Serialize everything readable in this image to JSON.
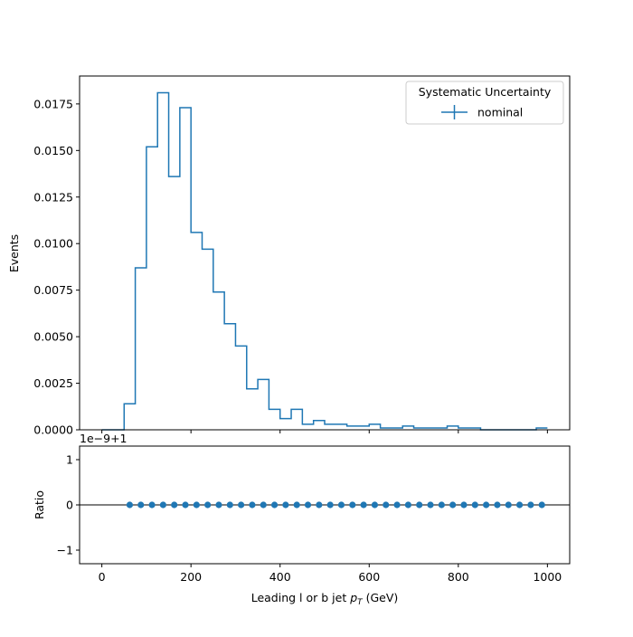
{
  "chart_data": [
    {
      "type": "line",
      "subtype": "step-histogram",
      "title": "",
      "xlabel": "",
      "ylabel": "Events",
      "xlim": [
        -50,
        1050
      ],
      "ylim": [
        0,
        0.019
      ],
      "x_ticks": [
        0,
        200,
        400,
        600,
        800,
        1000
      ],
      "y_ticks": [
        0.0,
        0.0025,
        0.005,
        0.0075,
        0.01,
        0.0125,
        0.015,
        0.0175
      ],
      "y_tick_labels": [
        "0.0000",
        "0.0025",
        "0.0050",
        "0.0075",
        "0.0100",
        "0.0125",
        "0.0150",
        "0.0175"
      ],
      "grid": false,
      "legend": {
        "title": "Systematic Uncertainty",
        "entries": [
          "nominal"
        ],
        "placement": "top-right"
      },
      "series": [
        {
          "name": "nominal",
          "color": "#1f77b4",
          "bin_edges": [
            0,
            25,
            50,
            75,
            100,
            125,
            150,
            175,
            200,
            225,
            250,
            275,
            300,
            325,
            350,
            375,
            400,
            425,
            450,
            475,
            500,
            525,
            550,
            575,
            600,
            625,
            650,
            675,
            700,
            725,
            750,
            775,
            800,
            825,
            850,
            875,
            900,
            925,
            950,
            975,
            1000
          ],
          "values": [
            0.0,
            0.0,
            0.0014,
            0.0087,
            0.0152,
            0.0181,
            0.0136,
            0.0173,
            0.0106,
            0.0097,
            0.0074,
            0.0057,
            0.0045,
            0.0022,
            0.0027,
            0.0011,
            0.0006,
            0.0011,
            0.0003,
            0.0005,
            0.0003,
            0.0003,
            0.0002,
            0.0002,
            0.0003,
            0.0001,
            0.0001,
            0.0002,
            0.0001,
            0.0001,
            0.0001,
            0.0002,
            0.0001,
            0.0001,
            0.0,
            0.0,
            0.0,
            0.0,
            0.0,
            0.0001
          ]
        }
      ]
    },
    {
      "type": "scatter",
      "title": "",
      "xlabel": "Leading l or b jet $p_T$ (GeV)",
      "ylabel": "Ratio",
      "offset_text": "1e−9+1",
      "xlim": [
        -50,
        1050
      ],
      "ylim": [
        -1.3,
        1.3
      ],
      "x_ticks": [
        0,
        200,
        400,
        600,
        800,
        1000
      ],
      "y_ticks": [
        -1,
        0,
        1
      ],
      "y_tick_labels": [
        "−1",
        "0",
        "1"
      ],
      "grid": false,
      "reference_line": 0,
      "series": [
        {
          "color": "#1f77b4",
          "x": [
            62.5,
            87.5,
            112.5,
            137.5,
            162.5,
            187.5,
            212.5,
            237.5,
            262.5,
            287.5,
            312.5,
            337.5,
            362.5,
            387.5,
            412.5,
            437.5,
            462.5,
            487.5,
            512.5,
            537.5,
            562.5,
            587.5,
            612.5,
            637.5,
            662.5,
            687.5,
            712.5,
            737.5,
            762.5,
            787.5,
            812.5,
            837.5,
            862.5,
            887.5,
            912.5,
            937.5,
            962.5,
            987.5
          ],
          "y": [
            0,
            0,
            0,
            0,
            0,
            0,
            0,
            0,
            0,
            0,
            0,
            0,
            0,
            0,
            0,
            0,
            0,
            0,
            0,
            0,
            0,
            0,
            0,
            0,
            0,
            0,
            0,
            0,
            0,
            0,
            0,
            0,
            0,
            0,
            0,
            0,
            0,
            0
          ]
        }
      ]
    }
  ]
}
